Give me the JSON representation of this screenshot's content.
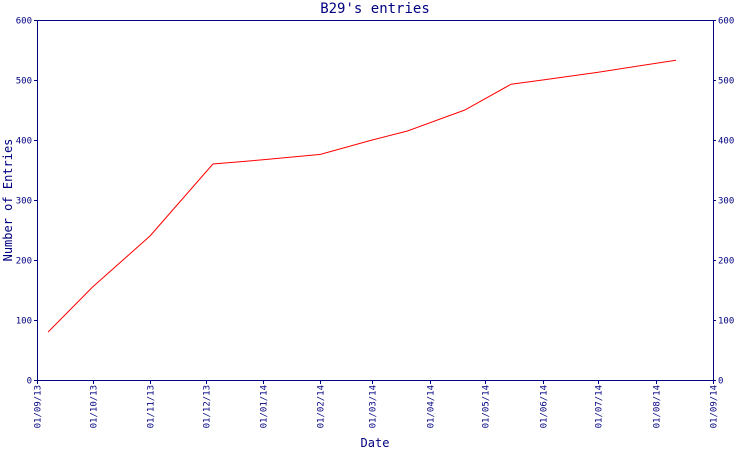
{
  "chart_data": {
    "type": "line",
    "title": "B29's entries",
    "xlabel": "Date",
    "ylabel": "Number of Entries",
    "ylim": [
      0,
      600
    ],
    "yticks": [
      0,
      100,
      200,
      300,
      400,
      500,
      600
    ],
    "xlim": [
      "2013-09-01",
      "2014-09-01"
    ],
    "xticks": [
      "01/09/13",
      "01/10/13",
      "01/11/13",
      "01/12/13",
      "01/01/14",
      "01/02/14",
      "01/03/14",
      "01/04/14",
      "01/05/14",
      "01/06/14",
      "01/07/14",
      "01/08/14",
      "01/09/14"
    ],
    "grid": false,
    "colors": {
      "axis": "#000080",
      "line": "#ff0000",
      "text": "#000080"
    },
    "series": [
      {
        "x": [
          "2013-09-07",
          "2013-10-01",
          "2013-11-01",
          "2013-12-05",
          "2014-01-01",
          "2014-02-01",
          "2014-03-01",
          "2014-03-20",
          "2014-04-20",
          "2014-05-15",
          "2014-06-01",
          "2014-07-01",
          "2014-08-12"
        ],
        "values": [
          80,
          155,
          240,
          360,
          367,
          376,
          400,
          415,
          450,
          493,
          500,
          513,
          533
        ]
      }
    ]
  }
}
